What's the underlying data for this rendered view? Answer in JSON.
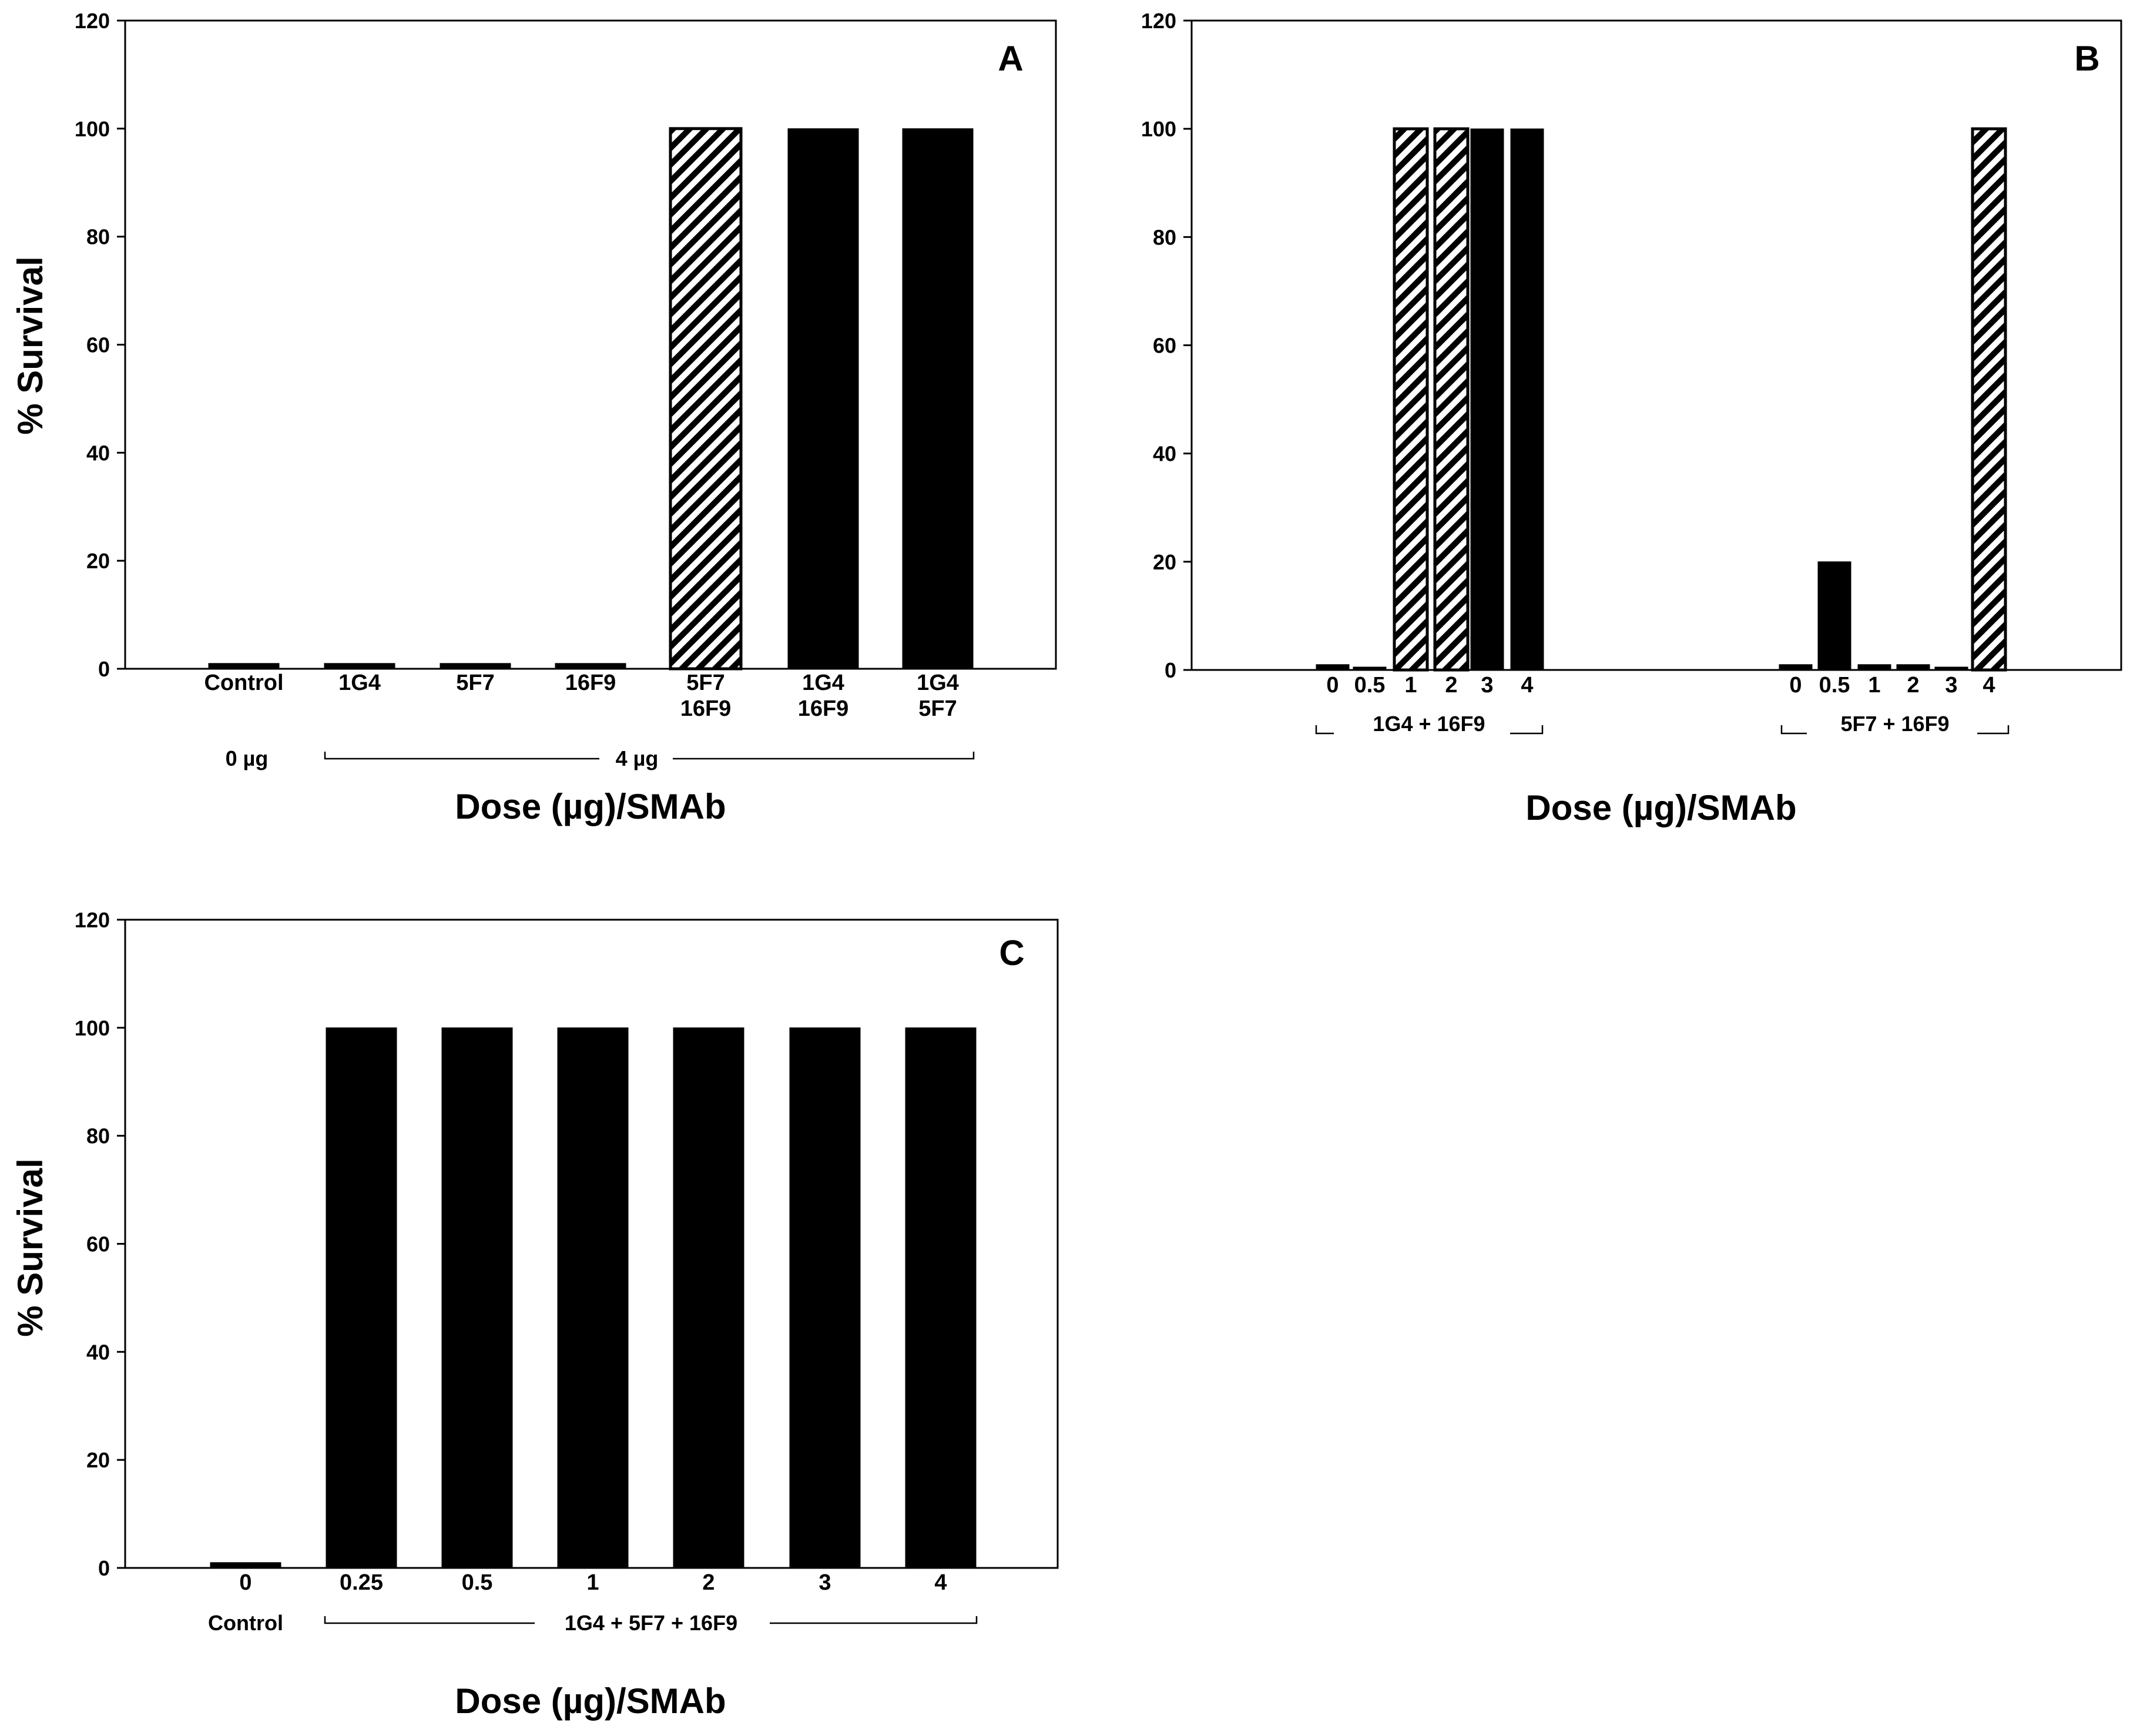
{
  "colors": {
    "bar_fill": "#000000",
    "hatch_fill": "#000000",
    "background": "#ffffff"
  },
  "chart_data": [
    {
      "panel": "A",
      "type": "bar",
      "ylabel": "% Survival",
      "xlabel": "Dose (µg)/SMAb",
      "ylim": [
        0,
        120
      ],
      "yticks": [
        0,
        20,
        40,
        60,
        80,
        100,
        120
      ],
      "categories": [
        [
          "Control"
        ],
        [
          "1G4"
        ],
        [
          "5F7"
        ],
        [
          "16F9"
        ],
        [
          "5F7",
          "16F9"
        ],
        [
          "1G4",
          "16F9"
        ],
        [
          "1G4",
          "5F7"
        ]
      ],
      "values": [
        1,
        1,
        1,
        1,
        100,
        100,
        100
      ],
      "patterns": [
        "solid",
        "solid",
        "solid",
        "solid",
        "hatched",
        "solid",
        "solid"
      ],
      "groups": [
        {
          "label": "0 µg",
          "from": 0,
          "to": 0,
          "bracket": false
        },
        {
          "label": "4 µg",
          "from": 1,
          "to": 6,
          "bracket": true
        }
      ]
    },
    {
      "panel": "B",
      "type": "bar",
      "ylabel": "",
      "xlabel": "Dose (µg)/SMAb",
      "ylim": [
        0,
        120
      ],
      "yticks": [
        0,
        20,
        40,
        60,
        80,
        100,
        120
      ],
      "categories": [
        [
          "0"
        ],
        [
          "0.5"
        ],
        [
          "1"
        ],
        [
          "2"
        ],
        [
          "3"
        ],
        [
          "4"
        ],
        [
          "0"
        ],
        [
          "0.5"
        ],
        [
          "1"
        ],
        [
          "2"
        ],
        [
          "3"
        ],
        [
          "4"
        ]
      ],
      "values": [
        1,
        0.5,
        100,
        100,
        100,
        100,
        1,
        20,
        1,
        1,
        0.5,
        100
      ],
      "patterns": [
        "solid",
        "solid",
        "hatched",
        "hatched",
        "solid",
        "solid",
        "solid",
        "solid",
        "solid",
        "solid",
        "solid",
        "hatched"
      ],
      "groups": [
        {
          "label": "1G4 + 16F9",
          "from": 0,
          "to": 5,
          "bracket": true
        },
        {
          "label": "5F7 + 16F9",
          "from": 6,
          "to": 11,
          "bracket": true
        }
      ]
    },
    {
      "panel": "C",
      "type": "bar",
      "ylabel": "% Survival",
      "xlabel": "Dose (µg)/SMAb",
      "ylim": [
        0,
        120
      ],
      "yticks": [
        0,
        20,
        40,
        60,
        80,
        100,
        120
      ],
      "categories": [
        [
          "0"
        ],
        [
          "0.25"
        ],
        [
          "0.5"
        ],
        [
          "1"
        ],
        [
          "2"
        ],
        [
          "3"
        ],
        [
          "4"
        ]
      ],
      "values": [
        1,
        100,
        100,
        100,
        100,
        100,
        100
      ],
      "patterns": [
        "solid",
        "solid",
        "solid",
        "solid",
        "solid",
        "solid",
        "solid"
      ],
      "groups": [
        {
          "label": "Control",
          "from": 0,
          "to": 0,
          "bracket": false
        },
        {
          "label": "1G4 + 5F7 + 16F9",
          "from": 1,
          "to": 6,
          "bracket": true
        }
      ]
    }
  ]
}
